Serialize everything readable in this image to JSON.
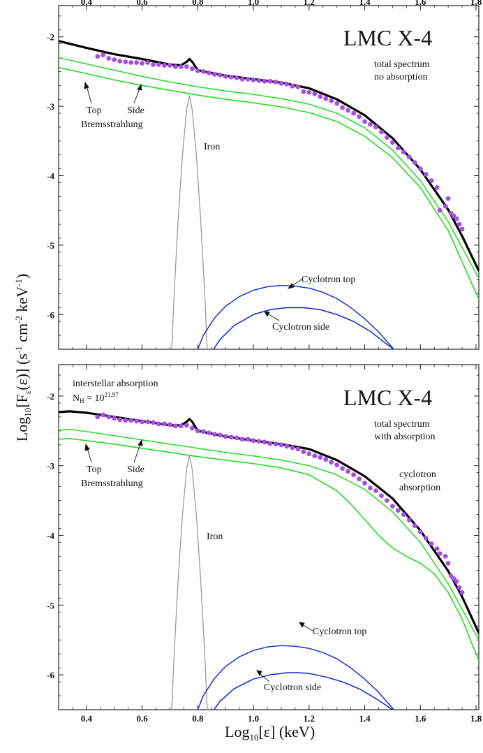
{
  "figure": {
    "x_label_main": "Log",
    "x_label_sub": "10",
    "x_label_rest": "[ε] (keV)",
    "y_label_main": "Log",
    "y_label_sub": "10",
    "y_label_f": "[F",
    "y_label_f_sub": "ε",
    "y_label_mid": "(ε)] (s",
    "y_label_sup1": "-1",
    "y_label_cm": " cm",
    "y_label_sup2": "-2",
    "y_label_kev": " keV",
    "y_label_sup3": "-1",
    "y_label_end": ")"
  },
  "chart_data": [
    {
      "type": "line",
      "panel": "top",
      "title": "LMC X-4",
      "subtitle_lines": [
        "total spectrum",
        "no absorption"
      ],
      "xlim": [
        0.3,
        1.81
      ],
      "ylim": [
        -6.5,
        -1.55
      ],
      "xticks": [
        0.4,
        0.6,
        0.8,
        1.0,
        1.2,
        1.4,
        1.6,
        1.8
      ],
      "xtick_labels": [
        "0.4",
        "0.6",
        "0.8",
        "1.0",
        "1.2",
        "1.4",
        "1.6",
        "1.8"
      ],
      "yticks": [
        -2,
        -3,
        -4,
        -5,
        -6
      ],
      "ytick_labels": [
        "-2",
        "-3",
        "-4",
        "-5",
        "-6"
      ],
      "show_top_tick_labels": true,
      "show_bottom_tick_labels": false,
      "annotations": {
        "top": "Top",
        "side": "Side",
        "brems": "Bremsstrahlung",
        "iron": "Iron",
        "cyc_top": "Cyclotron top",
        "cyc_side": "Cyclotron side",
        "extra_lines": []
      },
      "series": [
        {
          "name": "Total",
          "color": "#000000",
          "style": "solid",
          "width": 3.2,
          "x": [
            0.3,
            0.4,
            0.5,
            0.6,
            0.7,
            0.74,
            0.76,
            0.77,
            0.78,
            0.8,
            0.9,
            1.0,
            1.1,
            1.2,
            1.3,
            1.4,
            1.5,
            1.6,
            1.7,
            1.75,
            1.81
          ],
          "y": [
            -2.06,
            -2.16,
            -2.25,
            -2.32,
            -2.4,
            -2.41,
            -2.36,
            -2.32,
            -2.36,
            -2.48,
            -2.56,
            -2.61,
            -2.66,
            -2.74,
            -2.9,
            -3.13,
            -3.46,
            -3.91,
            -4.49,
            -4.87,
            -5.37
          ]
        },
        {
          "name": "Top Bremsstrahlung",
          "color": "#22dd22",
          "style": "dashed",
          "width": 1.6,
          "x": [
            0.3,
            0.4,
            0.5,
            0.6,
            0.7,
            0.8,
            0.9,
            1.0,
            1.1,
            1.2,
            1.3,
            1.4,
            1.5,
            1.6,
            1.7,
            1.81
          ],
          "y": [
            -2.3,
            -2.39,
            -2.48,
            -2.57,
            -2.65,
            -2.72,
            -2.78,
            -2.83,
            -2.89,
            -2.97,
            -3.1,
            -3.31,
            -3.63,
            -4.07,
            -4.66,
            -5.48
          ]
        },
        {
          "name": "Side Bremsstrahlung",
          "color": "#22dd22",
          "style": "solid",
          "width": 1.6,
          "x": [
            0.3,
            0.4,
            0.5,
            0.6,
            0.7,
            0.8,
            0.9,
            1.0,
            1.1,
            1.2,
            1.3,
            1.4,
            1.5,
            1.6,
            1.7,
            1.81
          ],
          "y": [
            -2.44,
            -2.53,
            -2.62,
            -2.7,
            -2.77,
            -2.84,
            -2.9,
            -2.95,
            -3.01,
            -3.09,
            -3.22,
            -3.43,
            -3.74,
            -4.17,
            -4.79,
            -5.78
          ]
        },
        {
          "name": "Iron",
          "color": "#9a9a9a",
          "style": "solid",
          "width": 1.3,
          "x": [
            0.705,
            0.715,
            0.73,
            0.745,
            0.76,
            0.77,
            0.78,
            0.795,
            0.81,
            0.825,
            0.835
          ],
          "y": [
            -6.6,
            -5.7,
            -4.6,
            -3.7,
            -3.05,
            -2.85,
            -3.05,
            -3.7,
            -4.6,
            -5.7,
            -6.6
          ]
        },
        {
          "name": "Cyclotron top",
          "color": "#1a33cc",
          "style": "dashed",
          "width": 1.6,
          "x": [
            0.79,
            0.82,
            0.86,
            0.9,
            0.95,
            1.0,
            1.05,
            1.1,
            1.15,
            1.2,
            1.25,
            1.3,
            1.35,
            1.4,
            1.45,
            1.5,
            1.53
          ],
          "y": [
            -6.6,
            -6.3,
            -6.05,
            -5.88,
            -5.74,
            -5.65,
            -5.6,
            -5.58,
            -5.59,
            -5.62,
            -5.68,
            -5.77,
            -5.9,
            -6.06,
            -6.25,
            -6.48,
            -6.6
          ]
        },
        {
          "name": "Cyclotron side",
          "color": "#1a33cc",
          "style": "solid",
          "width": 1.6,
          "x": [
            0.84,
            0.88,
            0.93,
            1.0,
            1.06,
            1.12,
            1.18,
            1.24,
            1.3,
            1.36,
            1.42,
            1.48,
            1.54
          ],
          "y": [
            -6.6,
            -6.36,
            -6.16,
            -6.0,
            -5.93,
            -5.9,
            -5.9,
            -5.93,
            -6.0,
            -6.1,
            -6.24,
            -6.43,
            -6.6
          ]
        }
      ],
      "points": {
        "name": "Data",
        "color": "#a64fe0",
        "x": [
          0.44,
          0.46,
          0.48,
          0.5,
          0.52,
          0.54,
          0.56,
          0.58,
          0.6,
          0.62,
          0.64,
          0.66,
          0.68,
          0.7,
          0.72,
          0.74,
          0.76,
          0.78,
          0.8,
          0.82,
          0.84,
          0.86,
          0.88,
          0.9,
          0.92,
          0.94,
          0.96,
          0.98,
          1.0,
          1.02,
          1.04,
          1.06,
          1.08,
          1.1,
          1.12,
          1.14,
          1.16,
          1.18,
          1.2,
          1.22,
          1.24,
          1.26,
          1.28,
          1.3,
          1.32,
          1.34,
          1.36,
          1.38,
          1.4,
          1.42,
          1.44,
          1.46,
          1.48,
          1.5,
          1.52,
          1.54,
          1.56,
          1.58,
          1.6,
          1.62,
          1.64,
          1.66,
          1.67,
          1.69,
          1.7,
          1.71,
          1.72,
          1.73,
          1.74,
          1.75
        ],
        "y": [
          -2.28,
          -2.26,
          -2.31,
          -2.33,
          -2.35,
          -2.36,
          -2.37,
          -2.37,
          -2.38,
          -2.37,
          -2.4,
          -2.4,
          -2.41,
          -2.41,
          -2.43,
          -2.43,
          -2.43,
          -2.46,
          -2.49,
          -2.5,
          -2.52,
          -2.54,
          -2.55,
          -2.57,
          -2.58,
          -2.59,
          -2.61,
          -2.61,
          -2.62,
          -2.63,
          -2.64,
          -2.64,
          -2.65,
          -2.67,
          -2.68,
          -2.71,
          -2.72,
          -2.79,
          -2.8,
          -2.82,
          -2.86,
          -2.89,
          -2.92,
          -2.96,
          -3.02,
          -3.06,
          -3.1,
          -3.15,
          -3.22,
          -3.26,
          -3.3,
          -3.37,
          -3.45,
          -3.52,
          -3.6,
          -3.66,
          -3.73,
          -3.81,
          -3.9,
          -3.98,
          -4.07,
          -4.17,
          -4.5,
          -4.44,
          -4.33,
          -4.54,
          -4.58,
          -4.62,
          -4.7,
          -4.77
        ]
      }
    },
    {
      "type": "line",
      "panel": "bottom",
      "title": "LMC X-4",
      "subtitle_lines": [
        "total spectrum",
        "with absorption"
      ],
      "xlim": [
        0.3,
        1.81
      ],
      "ylim": [
        -6.5,
        -1.55
      ],
      "xticks": [
        0.4,
        0.6,
        0.8,
        1.0,
        1.2,
        1.4,
        1.6,
        1.8
      ],
      "xtick_labels": [
        "0.4",
        "0.6",
        "0.8",
        "1.0",
        "1.2",
        "1.4",
        "1.6",
        "1.8"
      ],
      "yticks": [
        -2,
        -3,
        -4,
        -5,
        -6
      ],
      "ytick_labels": [
        "-2",
        "-3",
        "-4",
        "-5",
        "-6"
      ],
      "show_top_tick_labels": false,
      "show_bottom_tick_labels": true,
      "annotations": {
        "top": "Top",
        "side": "Side",
        "brems": "Bremsstrahlung",
        "iron": "Iron",
        "cyc_top": "Cyclotron top",
        "cyc_side": "Cyclotron side",
        "absorption": "interstellar absorption",
        "nh_label": "N",
        "nh_sub": "H",
        "nh_eq": " = 10",
        "nh_exp": "21.97",
        "cyc_abs_line1": "cyclotron",
        "cyc_abs_line2": "absorption"
      },
      "series": [
        {
          "name": "Total",
          "color": "#000000",
          "style": "solid",
          "width": 3.2,
          "x": [
            0.3,
            0.34,
            0.4,
            0.5,
            0.6,
            0.7,
            0.74,
            0.76,
            0.77,
            0.78,
            0.8,
            0.9,
            1.0,
            1.1,
            1.2,
            1.3,
            1.4,
            1.5,
            1.6,
            1.7,
            1.75,
            1.81
          ],
          "y": [
            -2.23,
            -2.22,
            -2.24,
            -2.3,
            -2.36,
            -2.42,
            -2.42,
            -2.37,
            -2.33,
            -2.37,
            -2.5,
            -2.58,
            -2.64,
            -2.69,
            -2.76,
            -2.92,
            -3.15,
            -3.47,
            -3.93,
            -4.51,
            -4.88,
            -5.4
          ]
        },
        {
          "name": "Top Bremsstrahlung",
          "color": "#22dd22",
          "style": "dashed",
          "width": 1.6,
          "x": [
            0.3,
            0.34,
            0.4,
            0.5,
            0.6,
            0.7,
            0.8,
            0.9,
            1.0,
            1.1,
            1.2,
            1.3,
            1.4,
            1.5,
            1.6,
            1.7,
            1.81
          ],
          "y": [
            -2.49,
            -2.48,
            -2.51,
            -2.57,
            -2.63,
            -2.69,
            -2.75,
            -2.81,
            -2.86,
            -2.92,
            -3.0,
            -3.13,
            -3.34,
            -3.66,
            -4.1,
            -4.69,
            -5.5
          ]
        },
        {
          "name": "Side Bremsstrahlung",
          "color": "#22dd22",
          "style": "solid",
          "width": 1.6,
          "x": [
            0.3,
            0.34,
            0.4,
            0.5,
            0.6,
            0.7,
            0.8,
            0.9,
            1.0,
            1.1,
            1.2,
            1.3,
            1.35,
            1.4,
            1.45,
            1.5,
            1.55,
            1.6,
            1.65,
            1.7,
            1.75,
            1.81
          ],
          "y": [
            -2.62,
            -2.61,
            -2.64,
            -2.69,
            -2.75,
            -2.81,
            -2.87,
            -2.92,
            -2.97,
            -3.03,
            -3.13,
            -3.36,
            -3.55,
            -3.77,
            -4.0,
            -4.18,
            -4.3,
            -4.4,
            -4.55,
            -4.82,
            -5.2,
            -5.8
          ]
        },
        {
          "name": "Iron",
          "color": "#9a9a9a",
          "style": "solid",
          "width": 1.3,
          "x": [
            0.705,
            0.715,
            0.73,
            0.745,
            0.76,
            0.77,
            0.78,
            0.795,
            0.81,
            0.825,
            0.835
          ],
          "y": [
            -6.6,
            -5.7,
            -4.6,
            -3.7,
            -3.05,
            -2.85,
            -3.05,
            -3.7,
            -4.6,
            -5.7,
            -6.6
          ]
        },
        {
          "name": "Cyclotron top",
          "color": "#1a33cc",
          "style": "dashed",
          "width": 1.6,
          "x": [
            0.79,
            0.82,
            0.86,
            0.9,
            0.95,
            1.0,
            1.05,
            1.1,
            1.15,
            1.2,
            1.25,
            1.3,
            1.35,
            1.4,
            1.45,
            1.5,
            1.53
          ],
          "y": [
            -6.6,
            -6.3,
            -6.05,
            -5.88,
            -5.74,
            -5.65,
            -5.6,
            -5.58,
            -5.59,
            -5.62,
            -5.68,
            -5.77,
            -5.9,
            -6.06,
            -6.25,
            -6.48,
            -6.6
          ]
        },
        {
          "name": "Cyclotron side",
          "color": "#1a33cc",
          "style": "solid",
          "width": 1.6,
          "x": [
            0.84,
            0.88,
            0.93,
            1.0,
            1.06,
            1.12,
            1.16,
            1.2,
            1.26,
            1.32,
            1.38,
            1.44,
            1.5,
            1.55
          ],
          "y": [
            -6.6,
            -6.38,
            -6.2,
            -6.06,
            -6.0,
            -5.97,
            -5.97,
            -5.98,
            -6.03,
            -6.1,
            -6.2,
            -6.34,
            -6.5,
            -6.6
          ]
        }
      ],
      "points": {
        "name": "Data",
        "color": "#a64fe0",
        "x": [
          0.44,
          0.46,
          0.48,
          0.5,
          0.52,
          0.54,
          0.56,
          0.58,
          0.6,
          0.62,
          0.64,
          0.66,
          0.68,
          0.7,
          0.72,
          0.74,
          0.76,
          0.78,
          0.8,
          0.82,
          0.84,
          0.86,
          0.88,
          0.9,
          0.92,
          0.94,
          0.96,
          0.98,
          1.0,
          1.02,
          1.04,
          1.06,
          1.08,
          1.1,
          1.12,
          1.14,
          1.16,
          1.18,
          1.2,
          1.22,
          1.24,
          1.26,
          1.28,
          1.3,
          1.32,
          1.34,
          1.36,
          1.38,
          1.4,
          1.42,
          1.44,
          1.46,
          1.48,
          1.5,
          1.52,
          1.54,
          1.56,
          1.58,
          1.6,
          1.62,
          1.64,
          1.66,
          1.67,
          1.69,
          1.7,
          1.71,
          1.72,
          1.73,
          1.74,
          1.75
        ],
        "y": [
          -2.3,
          -2.27,
          -2.3,
          -2.32,
          -2.34,
          -2.35,
          -2.35,
          -2.36,
          -2.37,
          -2.37,
          -2.38,
          -2.4,
          -2.4,
          -2.41,
          -2.43,
          -2.43,
          -2.42,
          -2.46,
          -2.5,
          -2.51,
          -2.53,
          -2.55,
          -2.56,
          -2.58,
          -2.59,
          -2.6,
          -2.62,
          -2.62,
          -2.64,
          -2.65,
          -2.66,
          -2.68,
          -2.69,
          -2.7,
          -2.72,
          -2.74,
          -2.76,
          -2.8,
          -2.83,
          -2.86,
          -2.88,
          -2.91,
          -2.95,
          -2.99,
          -3.04,
          -3.08,
          -3.13,
          -3.19,
          -3.25,
          -3.32,
          -3.36,
          -3.43,
          -3.5,
          -3.58,
          -3.64,
          -3.7,
          -3.78,
          -3.86,
          -3.95,
          -4.04,
          -4.12,
          -4.19,
          -4.26,
          -4.3,
          -4.4,
          -4.58,
          -4.62,
          -4.66,
          -4.75,
          -4.82
        ]
      }
    }
  ]
}
